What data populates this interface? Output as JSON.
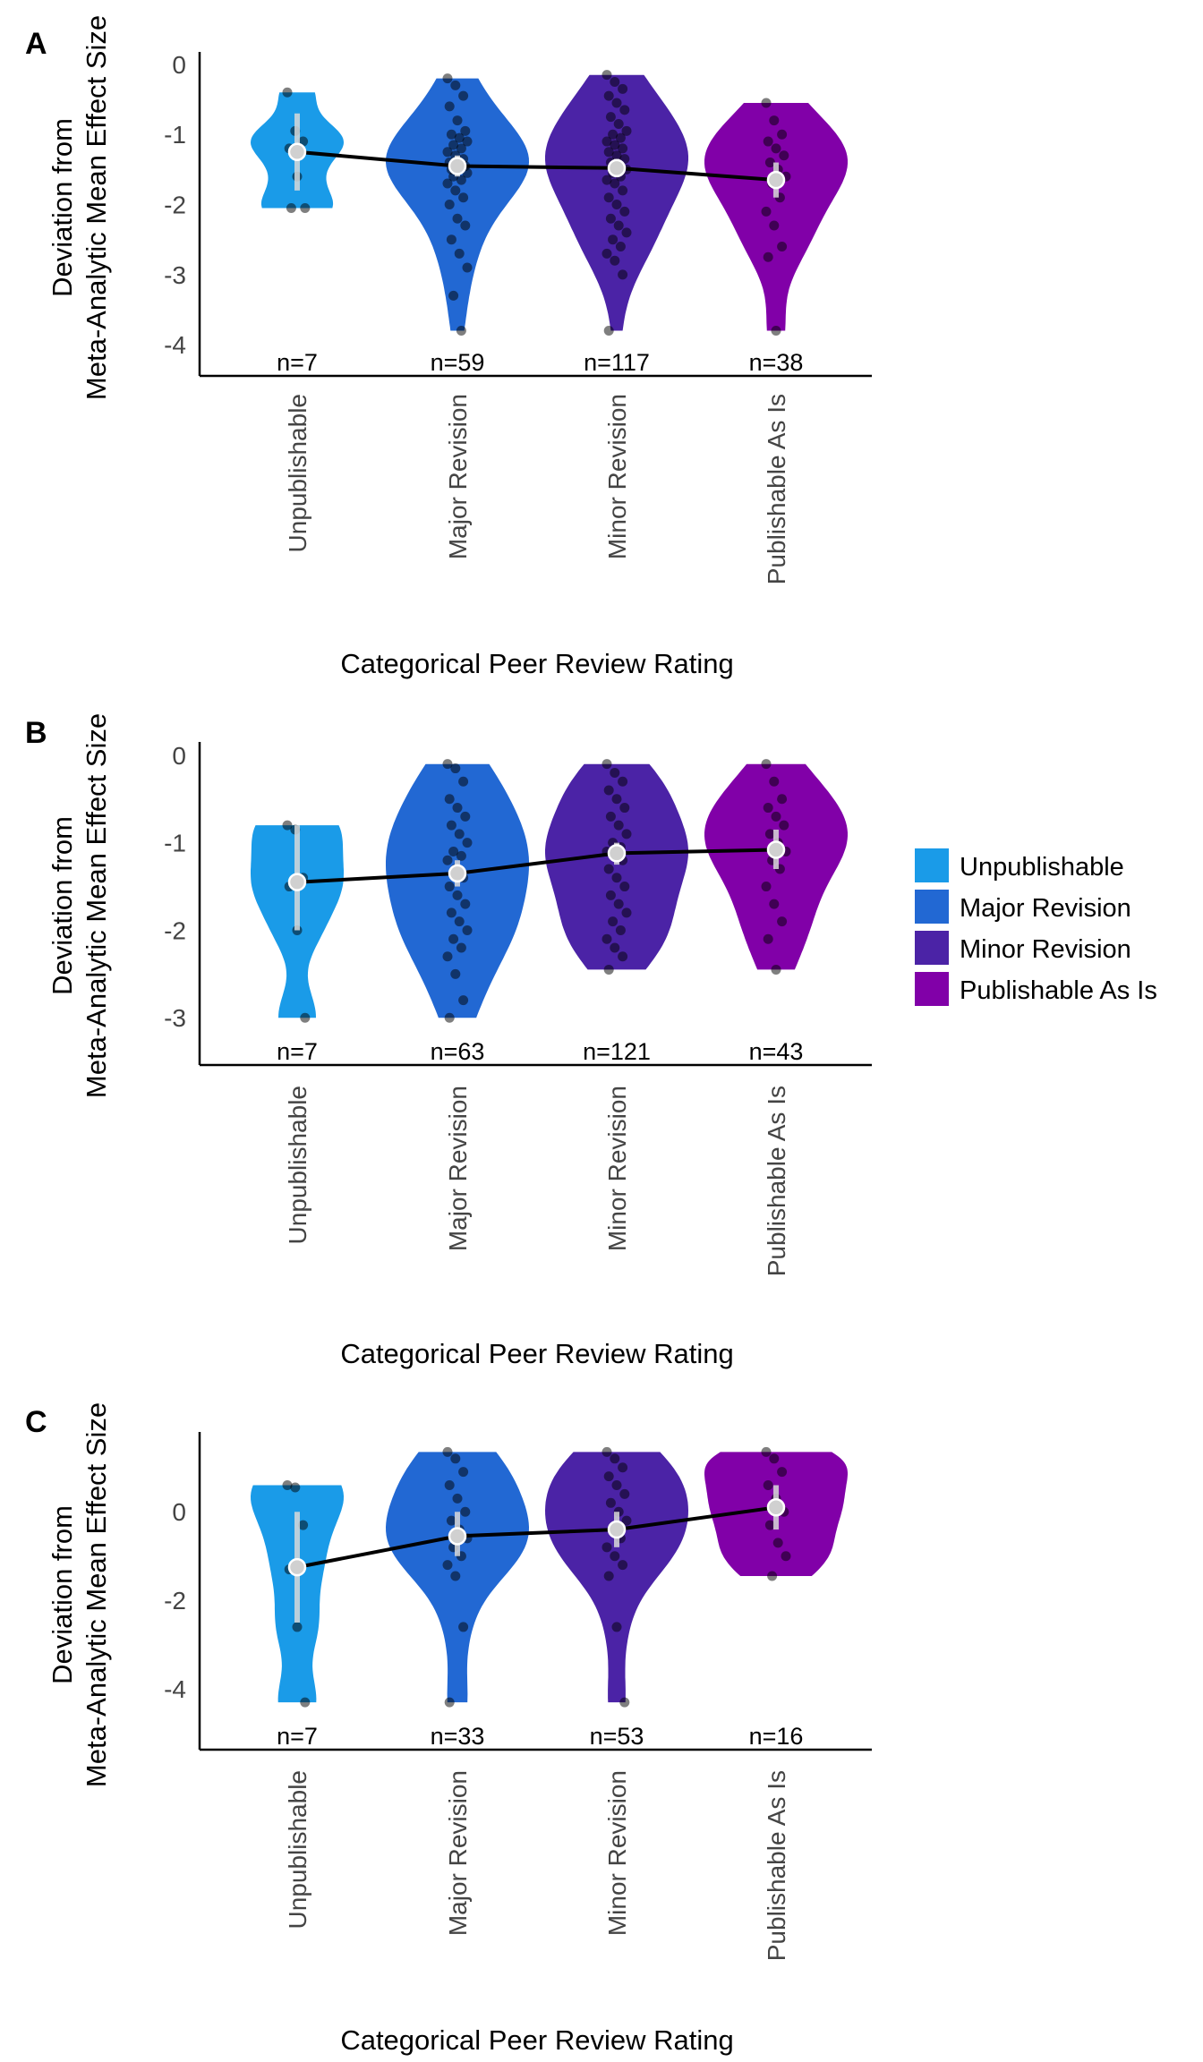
{
  "chart_data": [
    {
      "type": "violin",
      "panel": "A",
      "ylabel": [
        "Deviation from",
        "Meta-Analytic Mean Effect Size"
      ],
      "xlabel": "Categorical Peer Review Rating",
      "ylim": [
        -4.1,
        0.05
      ],
      "yticks": [
        0,
        -1,
        -2,
        -3,
        -4
      ],
      "categories": [
        "Unpublishable",
        "Major Revision",
        "Minor Revision",
        "Publishable As Is"
      ],
      "n_labels": [
        "n=7",
        "n=59",
        "n=117",
        "n=38"
      ],
      "means": [
        -1.25,
        -1.45,
        -1.48,
        -1.65
      ],
      "ci": [
        [
          -1.8,
          -0.7
        ],
        [
          -1.6,
          -1.3
        ],
        [
          -1.6,
          -1.35
        ],
        [
          -1.9,
          -1.4
        ]
      ],
      "ranges": [
        [
          -2.05,
          -0.4
        ],
        [
          -3.8,
          -0.2
        ],
        [
          -3.8,
          -0.15
        ],
        [
          -3.8,
          -0.55
        ]
      ],
      "points": [
        [
          -0.4,
          -0.95,
          -1.1,
          -1.2,
          -1.6,
          -2.05,
          -2.05
        ],
        [
          -0.2,
          -0.3,
          -0.45,
          -0.6,
          -0.8,
          -0.95,
          -1.0,
          -1.05,
          -1.1,
          -1.15,
          -1.2,
          -1.25,
          -1.3,
          -1.35,
          -1.4,
          -1.4,
          -1.45,
          -1.5,
          -1.5,
          -1.55,
          -1.6,
          -1.65,
          -1.7,
          -1.8,
          -1.9,
          -2.0,
          -2.2,
          -2.3,
          -2.5,
          -2.7,
          -2.9,
          -3.3,
          -3.8
        ],
        [
          -0.15,
          -0.25,
          -0.35,
          -0.45,
          -0.55,
          -0.65,
          -0.75,
          -0.85,
          -0.95,
          -1.0,
          -1.05,
          -1.1,
          -1.15,
          -1.2,
          -1.25,
          -1.3,
          -1.35,
          -1.4,
          -1.45,
          -1.5,
          -1.55,
          -1.6,
          -1.65,
          -1.7,
          -1.8,
          -1.9,
          -2.0,
          -2.1,
          -2.2,
          -2.3,
          -2.4,
          -2.5,
          -2.6,
          -2.7,
          -2.8,
          -3.0,
          -3.8
        ],
        [
          -0.55,
          -0.8,
          -1.0,
          -1.1,
          -1.2,
          -1.3,
          -1.4,
          -1.5,
          -1.6,
          -1.7,
          -1.9,
          -2.1,
          -2.3,
          -2.6,
          -2.75,
          -3.8
        ]
      ]
    },
    {
      "type": "violin",
      "panel": "B",
      "ylabel": [
        "Deviation from",
        "Meta-Analytic Mean Effect Size"
      ],
      "xlabel": "Categorical Peer Review Rating",
      "ylim": [
        -3.1,
        0.05
      ],
      "yticks": [
        0,
        -1,
        -2,
        -3
      ],
      "categories": [
        "Unpublishable",
        "Major Revision",
        "Minor Revision",
        "Publishable As Is"
      ],
      "n_labels": [
        "n=7",
        "n=63",
        "n=121",
        "n=43"
      ],
      "means": [
        -1.45,
        -1.35,
        -1.12,
        -1.08
      ],
      "ci": [
        [
          -2.0,
          -0.8
        ],
        [
          -1.5,
          -1.2
        ],
        [
          -1.25,
          -1.0
        ],
        [
          -1.3,
          -0.85
        ]
      ],
      "ranges": [
        [
          -3.0,
          -0.8
        ],
        [
          -3.0,
          -0.1
        ],
        [
          -2.45,
          -0.1
        ],
        [
          -2.45,
          -0.1
        ]
      ],
      "points": [
        [
          -0.8,
          -0.85,
          -1.4,
          -1.5,
          -2.0,
          -3.0
        ],
        [
          -0.1,
          -0.15,
          -0.3,
          -0.5,
          -0.6,
          -0.7,
          -0.8,
          -0.9,
          -1.0,
          -1.1,
          -1.15,
          -1.2,
          -1.3,
          -1.4,
          -1.5,
          -1.6,
          -1.7,
          -1.8,
          -1.9,
          -2.0,
          -2.1,
          -2.2,
          -2.3,
          -2.5,
          -2.8,
          -3.0
        ],
        [
          -0.1,
          -0.2,
          -0.3,
          -0.4,
          -0.5,
          -0.6,
          -0.7,
          -0.8,
          -0.9,
          -1.0,
          -1.05,
          -1.1,
          -1.15,
          -1.2,
          -1.3,
          -1.4,
          -1.5,
          -1.6,
          -1.7,
          -1.8,
          -1.9,
          -2.0,
          -2.1,
          -2.2,
          -2.3,
          -2.45
        ],
        [
          -0.1,
          -0.3,
          -0.5,
          -0.6,
          -0.7,
          -0.8,
          -0.9,
          -1.0,
          -1.1,
          -1.2,
          -1.3,
          -1.5,
          -1.7,
          -1.9,
          -2.1,
          -2.45
        ]
      ]
    },
    {
      "type": "violin",
      "panel": "C",
      "ylabel": [
        "Deviation from",
        "Meta-Analytic Mean Effect Size"
      ],
      "xlabel": "Categorical Peer Review Rating",
      "ylim": [
        -4.5,
        1.6
      ],
      "yticks": [
        0,
        -2,
        -4
      ],
      "categories": [
        "Unpublishable",
        "Major Revision",
        "Minor Revision",
        "Publishable As Is"
      ],
      "n_labels": [
        "n=7",
        "n=33",
        "n=53",
        "n=16"
      ],
      "means": [
        -1.25,
        -0.55,
        -0.4,
        0.1
      ],
      "ci": [
        [
          -2.5,
          0.0
        ],
        [
          -1.0,
          0.0
        ],
        [
          -0.8,
          0.0
        ],
        [
          -0.4,
          0.6
        ]
      ],
      "ranges": [
        [
          -4.3,
          0.6
        ],
        [
          -4.3,
          1.35
        ],
        [
          -4.3,
          1.35
        ],
        [
          -1.45,
          1.35
        ]
      ],
      "points": [
        [
          0.6,
          0.55,
          -0.3,
          -1.3,
          -2.6,
          -4.3
        ],
        [
          1.35,
          1.2,
          0.9,
          0.6,
          0.3,
          0.0,
          -0.2,
          -0.4,
          -0.6,
          -0.8,
          -1.0,
          -1.2,
          -1.45,
          -2.6,
          -4.3
        ],
        [
          1.35,
          1.2,
          1.0,
          0.8,
          0.6,
          0.4,
          0.2,
          0.0,
          -0.2,
          -0.4,
          -0.6,
          -0.8,
          -1.0,
          -1.2,
          -1.45,
          -2.6,
          -4.3
        ],
        [
          1.35,
          1.2,
          0.9,
          0.6,
          0.3,
          0.0,
          -0.3,
          -0.7,
          -1.0,
          -1.45
        ]
      ]
    }
  ],
  "legend": {
    "items": [
      {
        "label": "Unpublishable",
        "color": "#1a9be8"
      },
      {
        "label": "Major Revision",
        "color": "#2268d3"
      },
      {
        "label": "Minor Revision",
        "color": "#4b23a6"
      },
      {
        "label": "Publishable As Is",
        "color": "#8100a8"
      }
    ]
  }
}
